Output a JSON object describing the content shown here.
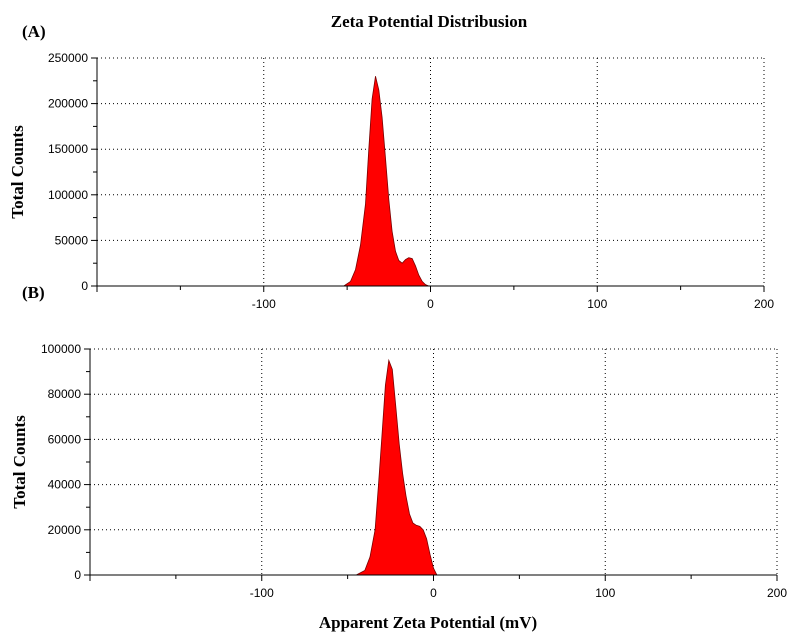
{
  "figure": {
    "title": "Zeta Potential Distribusion",
    "xlabel": "Apparent Zeta Potential (mV)"
  },
  "colors": {
    "fill": "#ff0000",
    "outline": "#7a0000",
    "axis": "#000000",
    "grid": "#000000"
  },
  "chart_data": [
    {
      "type": "area",
      "panel_label": "(A)",
      "xlabel": "",
      "ylabel": "Total Counts",
      "xlim": [
        -200,
        200
      ],
      "ylim": [
        0,
        250000
      ],
      "xticks": [
        -100,
        0,
        100,
        200
      ],
      "yticks": [
        0,
        50000,
        100000,
        150000,
        200000,
        250000
      ],
      "grid": true,
      "legend": "none",
      "series": [
        {
          "x": [
            -52,
            -48,
            -45,
            -42,
            -39,
            -37,
            -35,
            -33,
            -31,
            -29,
            -27,
            -25,
            -23,
            -21,
            -19,
            -17,
            -15,
            -13,
            -11,
            -9,
            -7,
            -5,
            -3,
            -1
          ],
          "y": [
            0,
            5000,
            18000,
            45000,
            90000,
            150000,
            205000,
            230000,
            215000,
            185000,
            140000,
            95000,
            60000,
            38000,
            28000,
            25000,
            29000,
            31000,
            30000,
            22000,
            12000,
            5000,
            1500,
            0
          ]
        }
      ]
    },
    {
      "type": "area",
      "panel_label": "(B)",
      "xlabel": "Apparent Zeta Potential (mV)",
      "ylabel": "Total Counts",
      "xlim": [
        -200,
        200
      ],
      "ylim": [
        0,
        100000
      ],
      "xticks": [
        -100,
        0,
        100,
        200
      ],
      "yticks": [
        0,
        20000,
        40000,
        60000,
        80000,
        100000
      ],
      "grid": true,
      "legend": "none",
      "series": [
        {
          "x": [
            -45,
            -40,
            -37,
            -34,
            -32,
            -30,
            -28,
            -26,
            -24,
            -22,
            -20,
            -18,
            -16,
            -14,
            -12,
            -10,
            -8,
            -6,
            -4,
            -2,
            0,
            2
          ],
          "y": [
            0,
            2000,
            8000,
            20000,
            40000,
            62000,
            84000,
            95000,
            91000,
            75000,
            58000,
            45000,
            35000,
            27000,
            23000,
            22000,
            21500,
            20000,
            16000,
            9000,
            3000,
            0
          ]
        }
      ]
    }
  ]
}
